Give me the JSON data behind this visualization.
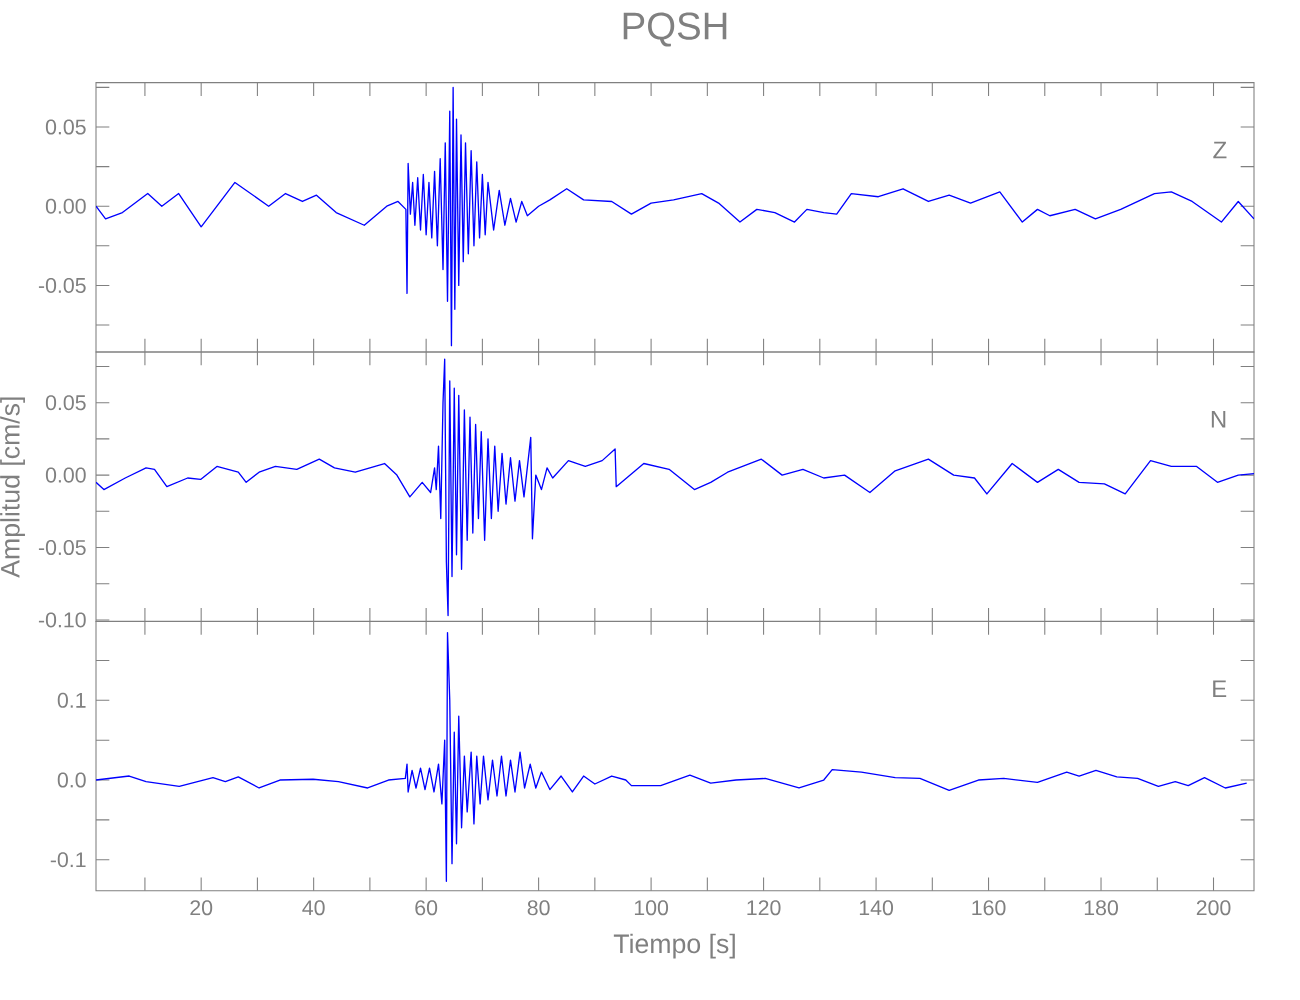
{
  "chart_data": [
    {
      "type": "line",
      "title": "PQSH",
      "annotations": [
        "Z"
      ],
      "color": "#0000ff",
      "tick_labels": "y",
      "xlim": [
        1.3,
        207.2
      ],
      "ylim": [
        -0.092,
        0.078
      ],
      "xticks": [
        {
          "value": 10,
          "label": null
        },
        {
          "value": 20,
          "label": null
        },
        {
          "value": 30,
          "label": null
        },
        {
          "value": 40,
          "label": null
        },
        {
          "value": 50,
          "label": null
        },
        {
          "value": 60,
          "label": null
        },
        {
          "value": 70,
          "label": null
        },
        {
          "value": 80,
          "label": null
        },
        {
          "value": 90,
          "label": null
        },
        {
          "value": 100,
          "label": null
        },
        {
          "value": 110,
          "label": null
        },
        {
          "value": 120,
          "label": null
        },
        {
          "value": 130,
          "label": null
        },
        {
          "value": 140,
          "label": null
        },
        {
          "value": 150,
          "label": null
        },
        {
          "value": 160,
          "label": null
        },
        {
          "value": 170,
          "label": null
        },
        {
          "value": 180,
          "label": null
        },
        {
          "value": 190,
          "label": null
        },
        {
          "value": 200,
          "label": null
        }
      ],
      "yticks": [
        {
          "value": -0.075,
          "label": null
        },
        -0.05,
        {
          "value": -0.025,
          "label": null
        },
        {
          "value": 0,
          "label": "0.00"
        },
        {
          "value": 0.025,
          "label": null
        },
        0.05,
        {
          "value": 0.075,
          "label": null
        }
      ],
      "x": [
        1.3,
        3,
        6,
        10.5,
        13,
        16,
        20,
        26,
        32,
        35,
        38,
        40.5,
        44,
        49,
        53,
        55,
        56.4,
        56.6,
        56.8,
        57.2,
        57.6,
        58,
        58.5,
        59,
        59.5,
        60,
        60.5,
        61,
        61.5,
        62,
        62.5,
        63,
        63.4,
        63.8,
        64.2,
        64.5,
        64.8,
        65.1,
        65.4,
        65.8,
        66.2,
        66.6,
        67,
        67.5,
        68,
        68.5,
        69,
        69.5,
        70,
        70.5,
        71,
        72,
        73,
        74,
        75,
        76,
        77,
        78,
        80,
        82,
        85,
        88,
        93,
        96.5,
        100,
        104,
        109,
        112,
        115.8,
        118.8,
        122,
        125.5,
        127.7,
        130.7,
        133,
        135.6,
        140.4,
        144.8,
        149.3,
        153,
        156.8,
        162,
        166,
        168.7,
        170.9,
        175.4,
        179,
        183.5,
        189.5,
        192.5,
        196.2,
        201.4,
        204.4,
        207.2
      ],
      "values": [
        0,
        -0.008,
        -0.004,
        0.008,
        0,
        0.008,
        -0.013,
        0.015,
        0,
        0.008,
        0.003,
        0.007,
        -0.004,
        -0.012,
        0,
        0.003,
        -0.002,
        -0.055,
        0.027,
        -0.005,
        0.015,
        -0.012,
        0.018,
        -0.015,
        0.02,
        -0.018,
        0.015,
        -0.02,
        0.022,
        -0.025,
        0.03,
        -0.04,
        0.04,
        -0.06,
        0.06,
        -0.088,
        0.075,
        -0.065,
        0.055,
        -0.05,
        0.045,
        -0.035,
        0.04,
        -0.03,
        0.035,
        -0.025,
        0.028,
        -0.02,
        0.02,
        -0.018,
        0.015,
        -0.015,
        0.01,
        -0.012,
        0.005,
        -0.01,
        0.003,
        -0.006,
        0,
        0.004,
        0.011,
        0.004,
        0.003,
        -0.005,
        0.002,
        0.004,
        0.008,
        0.002,
        -0.01,
        -0.002,
        -0.004,
        -0.01,
        -0.002,
        -0.004,
        -0.005,
        0.008,
        0.006,
        0.011,
        0.003,
        0.007,
        0.002,
        0.009,
        -0.01,
        -0.002,
        -0.006,
        -0.002,
        -0.008,
        -0.002,
        0.008,
        0.009,
        0.003,
        -0.01,
        0.003,
        -0.008
      ]
    },
    {
      "type": "line",
      "ylabel": "Amplitud [cm/s]",
      "annotations": [
        "N"
      ],
      "color": "#0000ff",
      "tick_labels": "y",
      "xlim": [
        1.3,
        207.2
      ],
      "ylim": [
        -0.101,
        0.085
      ],
      "xticks": [
        {
          "value": 10,
          "label": null
        },
        {
          "value": 20,
          "label": null
        },
        {
          "value": 30,
          "label": null
        },
        {
          "value": 40,
          "label": null
        },
        {
          "value": 50,
          "label": null
        },
        {
          "value": 60,
          "label": null
        },
        {
          "value": 70,
          "label": null
        },
        {
          "value": 80,
          "label": null
        },
        {
          "value": 90,
          "label": null
        },
        {
          "value": 100,
          "label": null
        },
        {
          "value": 110,
          "label": null
        },
        {
          "value": 120,
          "label": null
        },
        {
          "value": 130,
          "label": null
        },
        {
          "value": 140,
          "label": null
        },
        {
          "value": 150,
          "label": null
        },
        {
          "value": 160,
          "label": null
        },
        {
          "value": 170,
          "label": null
        },
        {
          "value": 180,
          "label": null
        },
        {
          "value": 190,
          "label": null
        },
        {
          "value": 200,
          "label": null
        }
      ],
      "yticks": [
        {
          "value": -0.1,
          "label": "-0.10"
        },
        {
          "value": -0.075,
          "label": null
        },
        -0.05,
        {
          "value": -0.025,
          "label": null
        },
        {
          "value": 0,
          "label": "0.00"
        },
        {
          "value": 0.025,
          "label": null
        },
        0.05,
        {
          "value": 0.075,
          "label": null
        }
      ],
      "x": [
        1.3,
        2.7,
        6.5,
        10.2,
        11.7,
        13.9,
        17.6,
        19.9,
        22.8,
        26.6,
        28,
        30.3,
        33.2,
        37,
        41,
        43.7,
        47.4,
        52.6,
        54.8,
        57.1,
        59.3,
        60.8,
        61.5,
        61.8,
        62.2,
        62.6,
        63,
        63.3,
        63.6,
        63.9,
        64.2,
        64.6,
        65,
        65.4,
        65.8,
        66.3,
        66.8,
        67.3,
        67.8,
        68.3,
        68.8,
        69.3,
        69.8,
        70.4,
        71,
        71.6,
        72.2,
        72.8,
        73.5,
        74.2,
        75,
        75.8,
        76.6,
        77.4,
        78.6,
        78.9,
        79.5,
        80.5,
        81.5,
        82.5,
        85.3,
        88.3,
        91.3,
        93.6,
        93.8,
        98.7,
        103.2,
        107.7,
        110.6,
        113.6,
        119.6,
        123.3,
        127,
        130.7,
        134.4,
        138.9,
        143.4,
        149.3,
        153.8,
        157.5,
        159.7,
        164.2,
        168.7,
        172.4,
        176.1,
        180.6,
        184.3,
        188.8,
        192.5,
        197,
        200.7,
        204.4,
        207.2
      ],
      "values": [
        -0.005,
        -0.01,
        -0.002,
        0.005,
        0.004,
        -0.008,
        -0.002,
        -0.003,
        0.006,
        0.002,
        -0.005,
        0.002,
        0.006,
        0.004,
        0.011,
        0.005,
        0.002,
        0.008,
        0,
        -0.015,
        -0.005,
        -0.012,
        0.005,
        -0.01,
        0.02,
        -0.03,
        0.05,
        0.08,
        -0.06,
        -0.097,
        0.065,
        -0.07,
        0.06,
        -0.055,
        0.055,
        -0.065,
        0.045,
        -0.045,
        0.04,
        -0.04,
        0.035,
        -0.03,
        0.03,
        -0.045,
        0.025,
        -0.03,
        0.02,
        -0.025,
        0.015,
        -0.02,
        0.012,
        -0.018,
        0.01,
        -0.015,
        0.026,
        -0.044,
        0,
        -0.01,
        0.005,
        -0.002,
        0.01,
        0.006,
        0.01,
        0.018,
        -0.008,
        0.008,
        0.004,
        -0.01,
        -0.005,
        0.002,
        0.011,
        0,
        0.004,
        -0.002,
        0,
        -0.012,
        0.003,
        0.011,
        0,
        -0.002,
        -0.013,
        0.008,
        -0.005,
        0.004,
        -0.005,
        -0.006,
        -0.013,
        0.01,
        0.006,
        0.006,
        -0.005,
        0,
        0.001
      ]
    },
    {
      "type": "line",
      "xlabel": "Tiempo [s]",
      "annotations": [
        "E"
      ],
      "color": "#0000ff",
      "xlim": [
        1.3,
        207.2
      ],
      "ylim": [
        -0.139,
        0.199
      ],
      "xticks": [
        {
          "value": 10,
          "label": null
        },
        20,
        {
          "value": 30,
          "label": null
        },
        40,
        {
          "value": 50,
          "label": null
        },
        60,
        {
          "value": 70,
          "label": null
        },
        80,
        {
          "value": 90,
          "label": null
        },
        100,
        {
          "value": 110,
          "label": null
        },
        120,
        {
          "value": 130,
          "label": null
        },
        140,
        {
          "value": 150,
          "label": null
        },
        160,
        {
          "value": 170,
          "label": null
        },
        180,
        {
          "value": 190,
          "label": null
        },
        200
      ],
      "yticks": [
        -0.1,
        {
          "value": -0.05,
          "label": null
        },
        {
          "value": 0,
          "label": "0.0"
        },
        {
          "value": 0.05,
          "label": null
        },
        0.1,
        {
          "value": 0.15,
          "label": null
        }
      ],
      "x": [
        1.3,
        7.2,
        10.2,
        16.1,
        22.1,
        24.3,
        26.6,
        30.3,
        34,
        39.9,
        44.4,
        49.6,
        53.3,
        56.3,
        56.6,
        56.8,
        57.5,
        58.2,
        59,
        59.8,
        60.6,
        61.4,
        62.2,
        62.8,
        63.3,
        63.6,
        63.8,
        64.2,
        64.6,
        65,
        65.4,
        65.8,
        66.3,
        66.8,
        67.3,
        68,
        68.5,
        69,
        69.6,
        70.2,
        71,
        71.8,
        72.6,
        73.4,
        74.2,
        75,
        75.8,
        76.7,
        77.5,
        78.5,
        79.5,
        80.5,
        82,
        84,
        86,
        88,
        90,
        93,
        95.5,
        96.5,
        101.7,
        106.9,
        110.6,
        115.1,
        120.3,
        126.3,
        130.7,
        132.2,
        137.4,
        143.4,
        147.8,
        153,
        158.2,
        162.7,
        168.7,
        173.9,
        176.1,
        179.1,
        182.8,
        186.5,
        190.2,
        193.2,
        195.5,
        198.4,
        202.1,
        205.9
      ],
      "values": [
        0,
        0.005,
        -0.002,
        -0.008,
        0.003,
        -0.002,
        0.004,
        -0.01,
        0,
        0.001,
        -0.002,
        -0.01,
        0,
        0.002,
        0.02,
        -0.015,
        0.012,
        -0.01,
        0.015,
        -0.012,
        0.015,
        -0.015,
        0.02,
        -0.03,
        0.05,
        -0.127,
        0.185,
        0.1,
        -0.105,
        0.06,
        -0.08,
        0.08,
        -0.06,
        0.03,
        -0.04,
        0.035,
        -0.055,
        0.03,
        -0.03,
        0.03,
        -0.025,
        0.025,
        -0.02,
        0.03,
        -0.02,
        0.025,
        -0.015,
        0.035,
        -0.01,
        0.02,
        -0.01,
        0.01,
        -0.012,
        0.005,
        -0.015,
        0.005,
        -0.005,
        0.005,
        0,
        -0.007,
        -0.007,
        0.006,
        -0.004,
        0,
        0.002,
        -0.01,
        0,
        0.013,
        0.01,
        0.003,
        0.002,
        -0.013,
        0,
        0.002,
        -0.003,
        0.01,
        0.005,
        0.012,
        0.004,
        0.002,
        -0.008,
        -0.002,
        -0.007,
        0.003,
        -0.01,
        -0.004
      ]
    }
  ]
}
